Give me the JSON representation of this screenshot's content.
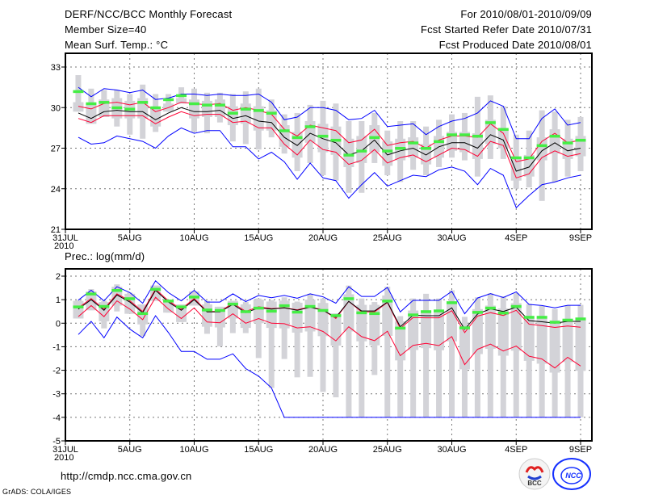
{
  "header": {
    "title": "DERF/NCC/BCC Monthly Forecast",
    "member_size": "Member Size=40",
    "variable": "Mean Surf. Temp.: °C",
    "period": "For 2010/08/01-2010/09/09",
    "start_date": "Fcst Started Refer Date 2010/07/31",
    "produced_date": "Fcst Produced Date 2010/08/01"
  },
  "footer": {
    "url": "http://cmdp.ncc.cma.gov.cn",
    "credit": "GrADS: COLA/IGES",
    "logos": [
      "BCC",
      "NCC"
    ]
  },
  "colors": {
    "max_min": "#0000ff",
    "spread": "#ff0033",
    "mean": "#000000",
    "obs": "#44ee44",
    "box": "#d3d3d8",
    "grid": "#777777"
  },
  "chart_data": [
    {
      "type": "line",
      "title": "Mean Surf. Temp.: °C",
      "x_ticks": [
        "31JUL",
        "5AUG",
        "10AUG",
        "15AUG",
        "20AUG",
        "25AUG",
        "30AUG",
        "4SEP",
        "9SEP"
      ],
      "x_year": "2010",
      "y_ticks": [
        "21",
        "24",
        "27",
        "30",
        "33"
      ],
      "ylim": [
        21,
        33.9
      ],
      "x_start_day": 1,
      "days": 40,
      "series": {
        "mean": [
          29.6,
          29.2,
          29.7,
          29.8,
          29.7,
          29.7,
          29.1,
          29.6,
          30.0,
          29.7,
          29.7,
          29.8,
          29.2,
          29.4,
          29.0,
          28.9,
          27.8,
          27.2,
          28.1,
          27.7,
          27.4,
          26.5,
          26.8,
          27.6,
          26.5,
          26.8,
          27.0,
          26.5,
          27.1,
          27.4,
          27.4,
          27.0,
          28.0,
          27.6,
          25.3,
          25.6,
          26.8,
          27.4,
          26.8,
          27.0
        ],
        "upper": [
          30.1,
          29.9,
          30.3,
          30.4,
          30.2,
          30.4,
          29.7,
          30.0,
          30.4,
          30.3,
          30.2,
          30.3,
          29.8,
          30.0,
          29.8,
          29.5,
          28.4,
          27.9,
          28.7,
          28.5,
          28.3,
          27.4,
          27.6,
          28.4,
          27.2,
          27.4,
          27.5,
          27.0,
          27.6,
          27.9,
          27.9,
          27.8,
          28.8,
          28.1,
          26.0,
          26.2,
          27.5,
          28.1,
          27.4,
          27.6
        ],
        "lower": [
          29.2,
          28.9,
          29.4,
          29.4,
          29.4,
          29.4,
          28.8,
          29.3,
          29.7,
          29.4,
          29.5,
          29.5,
          28.9,
          29.0,
          28.5,
          28.5,
          27.3,
          26.5,
          27.6,
          26.9,
          26.7,
          25.8,
          26.1,
          26.9,
          25.9,
          26.3,
          26.5,
          26.0,
          26.5,
          27.0,
          26.9,
          26.4,
          27.5,
          27.2,
          24.8,
          25.1,
          26.3,
          26.8,
          26.4,
          26.6
        ],
        "max": [
          31.5,
          30.8,
          31.4,
          31.3,
          31.1,
          31.3,
          30.6,
          30.7,
          31.0,
          31.0,
          30.9,
          31.0,
          30.9,
          30.9,
          31.0,
          30.4,
          29.1,
          29.3,
          30.0,
          30.0,
          29.8,
          29.1,
          29.2,
          29.8,
          28.6,
          28.7,
          28.8,
          28.0,
          28.6,
          29.0,
          29.2,
          29.6,
          30.5,
          30.1,
          27.7,
          27.7,
          29.2,
          29.9,
          28.7,
          28.9
        ],
        "min": [
          27.8,
          27.3,
          27.4,
          27.9,
          27.7,
          27.5,
          27.0,
          27.9,
          28.5,
          28.1,
          28.3,
          28.3,
          27.1,
          27.1,
          26.2,
          26.7,
          26.0,
          24.7,
          25.9,
          24.8,
          24.6,
          23.3,
          24.3,
          25.2,
          24.2,
          24.6,
          25.0,
          24.9,
          25.4,
          25.6,
          25.3,
          24.3,
          25.5,
          25.0,
          22.6,
          23.5,
          24.3,
          24.5,
          24.8,
          25.0
        ],
        "obs": [
          31.2,
          30.3,
          30.4,
          30.0,
          29.9,
          30.4,
          30.0,
          30.6,
          30.9,
          30.3,
          30.2,
          30.2,
          29.6,
          29.9,
          29.8,
          29.6,
          28.3,
          27.8,
          28.6,
          27.9,
          27.6,
          26.5,
          26.8,
          27.8,
          26.8,
          27.0,
          27.4,
          27.0,
          27.5,
          28.0,
          28.0,
          27.9,
          28.9,
          28.4,
          26.3,
          26.3,
          27.2,
          27.9,
          27.4,
          27.6
        ],
        "range_low": [
          29.7,
          28.8,
          29.3,
          28.6,
          28.0,
          27.7,
          28.2,
          29.7,
          30.3,
          28.2,
          28.1,
          28.9,
          27.5,
          27.3,
          26.9,
          27.8,
          26.6,
          25.3,
          25.9,
          25.0,
          24.6,
          23.7,
          23.7,
          25.9,
          25.0,
          24.5,
          25.4,
          25.0,
          25.6,
          26.3,
          26.1,
          24.9,
          26.2,
          26.2,
          24.0,
          24.1,
          23.1,
          24.5,
          24.9,
          25.3
        ],
        "range_high": [
          32.4,
          31.4,
          31.3,
          31.3,
          31.0,
          31.7,
          31.0,
          31.0,
          31.5,
          31.4,
          31.1,
          31.1,
          31.0,
          31.2,
          31.4,
          30.6,
          29.5,
          29.6,
          30.2,
          30.5,
          30.3,
          29.0,
          29.0,
          29.6,
          28.3,
          29.0,
          29.0,
          28.6,
          29.1,
          29.5,
          29.6,
          30.8,
          30.9,
          30.1,
          28.0,
          28.3,
          29.8,
          29.7,
          29.1,
          29.3
        ]
      }
    },
    {
      "type": "line",
      "title": "Prec.: log(mm/d)",
      "x_ticks": [
        "31JUL",
        "5AUG",
        "10AUG",
        "15AUG",
        "20AUG",
        "25AUG",
        "30AUG",
        "4SEP",
        "9SEP"
      ],
      "x_year": "2010",
      "y_ticks": [
        "-5",
        "-4",
        "-3",
        "-2",
        "-1",
        "0",
        "1",
        "2"
      ],
      "ylim": [
        -5,
        2.3
      ],
      "x_start_day": 1,
      "days": 40,
      "series": {
        "mean": [
          0.6,
          1.0,
          0.55,
          1.2,
          0.9,
          0.45,
          1.4,
          0.9,
          0.55,
          1.0,
          0.48,
          0.48,
          0.8,
          0.45,
          0.65,
          0.6,
          0.65,
          0.55,
          0.68,
          0.55,
          0.25,
          0.93,
          0.52,
          0.52,
          0.9,
          -0.15,
          0.34,
          0.32,
          0.32,
          0.65,
          -0.26,
          0.39,
          0.61,
          0.5,
          0.68,
          0.11,
          0.06,
          0.0,
          0.08,
          0.08
        ],
        "upper": [
          0.65,
          1.05,
          0.6,
          1.25,
          0.95,
          0.5,
          1.45,
          0.95,
          0.6,
          1.05,
          0.5,
          0.5,
          0.85,
          0.5,
          0.7,
          0.62,
          0.66,
          0.57,
          0.7,
          0.56,
          0.2,
          0.93,
          0.48,
          0.48,
          0.88,
          -0.22,
          0.24,
          0.23,
          0.23,
          0.53,
          -0.4,
          0.3,
          0.45,
          0.33,
          0.55,
          -0.04,
          -0.1,
          -0.18,
          -0.12,
          -0.17
        ],
        "lower": [
          0.28,
          0.75,
          0.28,
          0.95,
          0.6,
          0.15,
          1.1,
          0.6,
          0.2,
          0.65,
          0.05,
          0.02,
          0.4,
          0.0,
          0.2,
          0.0,
          -0.02,
          -0.2,
          -0.15,
          -0.35,
          -0.75,
          -0.15,
          -0.57,
          -0.74,
          -0.34,
          -1.38,
          -0.94,
          -0.86,
          -0.95,
          -0.57,
          -1.76,
          -1.11,
          -0.89,
          -1.18,
          -0.97,
          -1.4,
          -1.52,
          -1.9,
          -1.45,
          -1.82
        ],
        "max": [
          0.98,
          1.4,
          0.95,
          1.55,
          1.3,
          0.85,
          1.8,
          1.3,
          0.95,
          1.4,
          0.9,
          0.9,
          1.25,
          0.92,
          1.18,
          1.08,
          1.18,
          1.06,
          1.25,
          1.12,
          0.85,
          1.55,
          1.14,
          1.14,
          1.52,
          0.48,
          0.97,
          0.97,
          0.97,
          1.35,
          0.4,
          1.07,
          1.26,
          1.09,
          1.33,
          0.8,
          0.75,
          0.65,
          0.76,
          0.76
        ],
        "min": [
          -0.48,
          0.08,
          -0.62,
          0.26,
          -0.25,
          -0.62,
          0.32,
          -0.4,
          -1.2,
          -1.2,
          -1.53,
          -1.53,
          -1.3,
          -1.93,
          -2.25,
          -2.75,
          -4,
          -4,
          -4,
          -4,
          -4,
          -4,
          -4,
          -4,
          -4,
          -4,
          -4,
          -4,
          -4,
          -4,
          -4,
          -4,
          -4,
          -4,
          -4,
          -4,
          -4,
          -4,
          -4,
          -4
        ],
        "obs": [
          0.7,
          1.25,
          0.72,
          1.4,
          1.05,
          0.42,
          1.45,
          0.95,
          0.7,
          1.12,
          0.57,
          0.55,
          0.82,
          0.5,
          0.65,
          0.52,
          0.75,
          0.48,
          0.72,
          0.55,
          0.33,
          1.05,
          0.45,
          0.42,
          0.95,
          -0.2,
          0.36,
          0.5,
          0.53,
          0.88,
          -0.19,
          0.47,
          0.65,
          0.44,
          0.72,
          0.26,
          0.26,
          0.05,
          0.14,
          0.19
        ],
        "range_low": [
          0.2,
          0.55,
          -0.22,
          0.5,
          0.4,
          -0.55,
          0.95,
          0.45,
          0.05,
          0.75,
          -0.45,
          -0.98,
          -0.42,
          -0.42,
          -1.48,
          -2.75,
          -1.52,
          -2.3,
          -2.28,
          -2.92,
          -3.15,
          -4,
          -4,
          -2.2,
          -4,
          -4,
          -4,
          -4,
          -4,
          -4,
          -4,
          -4,
          -4,
          -4,
          -4,
          -4,
          -4,
          -4,
          -4,
          -4
        ],
        "range_high": [
          0.98,
          1.45,
          0.95,
          1.65,
          1.3,
          0.8,
          1.6,
          1.0,
          0.8,
          1.35,
          0.95,
          0.7,
          0.95,
          0.9,
          1.05,
          0.98,
          1.1,
          0.92,
          1.25,
          1.05,
          0.42,
          1.6,
          1.05,
          0.9,
          1.55,
          0.3,
          1.05,
          1.25,
          1.05,
          1.4,
          0.27,
          1.1,
          1.27,
          1.14,
          1.27,
          0.82,
          0.73,
          0.6,
          0.76,
          0.78
        ]
      }
    }
  ]
}
